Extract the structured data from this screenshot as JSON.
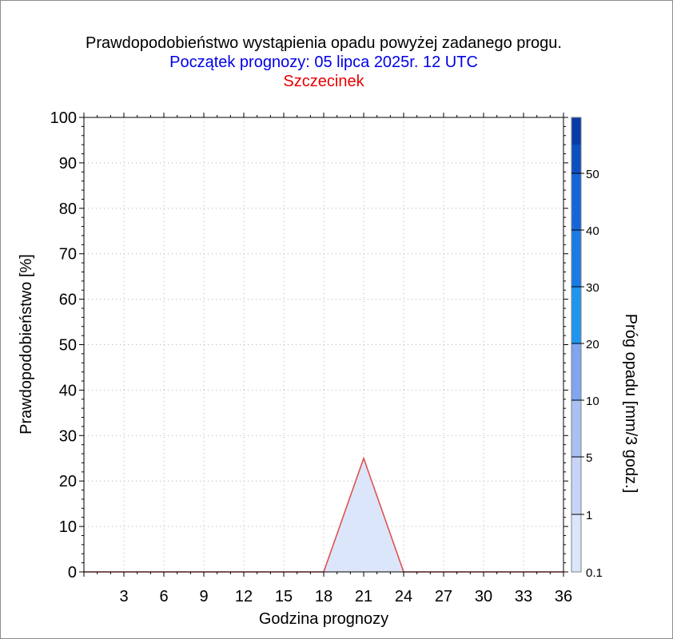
{
  "chart_data": {
    "type": "area",
    "title": "Prawdopodobieństwo wystąpienia opadu powyżej zadanego progu.",
    "subtitle": "Początek prognozy: 05 lipca 2025r. 12 UTC",
    "location": "Szczecinek",
    "xlabel": "Godzina prognozy",
    "ylabel": "Prawdopodobieństwo [%]",
    "xlim": [
      0,
      36
    ],
    "ylim": [
      0,
      100
    ],
    "xticks": [
      3,
      6,
      9,
      12,
      15,
      18,
      21,
      24,
      27,
      30,
      33,
      36
    ],
    "yticks": [
      0,
      10,
      20,
      30,
      40,
      50,
      60,
      70,
      80,
      90,
      100
    ],
    "grid": true,
    "series": [
      {
        "name": "0.1",
        "color": "#dce6fa",
        "line_color": "#e05050",
        "x": [
          0,
          3,
          6,
          9,
          12,
          15,
          18,
          21,
          24,
          27,
          30,
          33,
          36
        ],
        "y": [
          0,
          0,
          0,
          0,
          0,
          0,
          0,
          25,
          0,
          0,
          0,
          0,
          0
        ]
      }
    ],
    "colorbar": {
      "label": "Próg opadu [mm/3 godz.]",
      "tick_labels": [
        "0.1",
        "1",
        "5",
        "10",
        "20",
        "30",
        "40",
        "50"
      ],
      "colors": [
        "#dce6fa",
        "#c6d5f7",
        "#a9c1f2",
        "#7fa6ee",
        "#1e96f0",
        "#1a7ae6",
        "#1565d8",
        "#0c50c0",
        "#0a3ca8"
      ]
    }
  }
}
